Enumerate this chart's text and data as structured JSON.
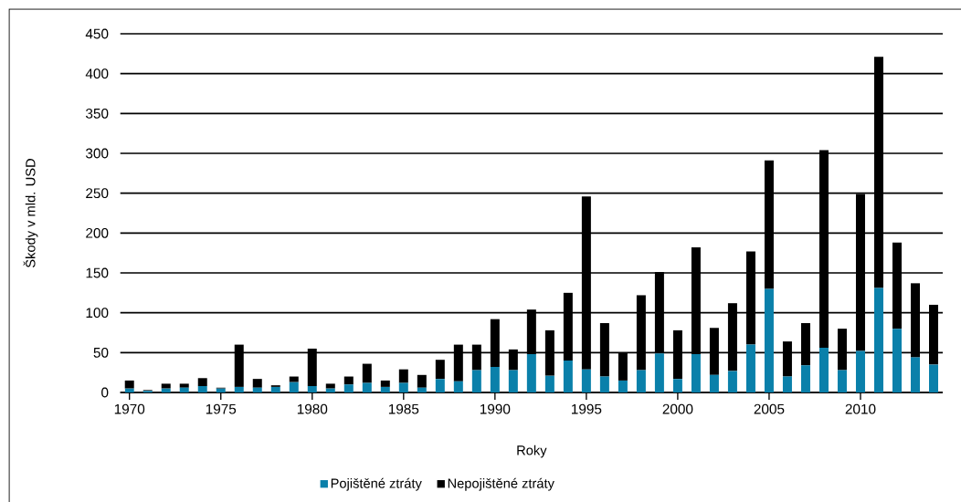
{
  "chart_data": {
    "type": "bar",
    "stacked": true,
    "xlabel": "Roky",
    "ylabel": "Škody v mld. USD",
    "x": [
      1970,
      1971,
      1972,
      1973,
      1974,
      1975,
      1976,
      1977,
      1978,
      1979,
      1980,
      1981,
      1982,
      1983,
      1984,
      1985,
      1986,
      1987,
      1988,
      1989,
      1990,
      1991,
      1992,
      1993,
      1994,
      1995,
      1996,
      1997,
      1998,
      1999,
      2000,
      2001,
      2002,
      2003,
      2004,
      2005,
      2006,
      2007,
      2008,
      2009,
      2010,
      2011,
      2012,
      2013,
      2014
    ],
    "xlim": [
      1969.5,
      2014.5
    ],
    "xticks": [
      1970,
      1975,
      1980,
      1985,
      1990,
      1995,
      2000,
      2005,
      2010
    ],
    "ylim": [
      0,
      450
    ],
    "yticks": [
      0,
      50,
      100,
      150,
      200,
      250,
      300,
      350,
      400,
      450
    ],
    "grid": "y",
    "legend": "bottom",
    "series": [
      {
        "name": "Pojištěné ztráty",
        "color": "#0a80aa",
        "values": [
          5,
          2,
          5,
          6,
          8,
          5,
          7,
          6,
          7,
          13,
          8,
          5,
          10,
          12,
          7,
          12,
          6,
          17,
          14,
          28,
          32,
          28,
          48,
          21,
          40,
          29,
          20,
          15,
          28,
          49,
          17,
          48,
          22,
          27,
          60,
          130,
          20,
          34,
          56,
          28,
          52,
          131,
          80,
          44,
          35
        ]
      },
      {
        "name": "Nepojištěné ztráty",
        "color": "#000000",
        "values": [
          10,
          1,
          6,
          5,
          10,
          1,
          53,
          11,
          2,
          7,
          47,
          6,
          10,
          24,
          8,
          17,
          16,
          24,
          46,
          32,
          60,
          26,
          56,
          57,
          85,
          217,
          67,
          35,
          94,
          102,
          61,
          134,
          59,
          85,
          117,
          161,
          44,
          53,
          248,
          52,
          197,
          290,
          108,
          93,
          75
        ]
      }
    ]
  }
}
